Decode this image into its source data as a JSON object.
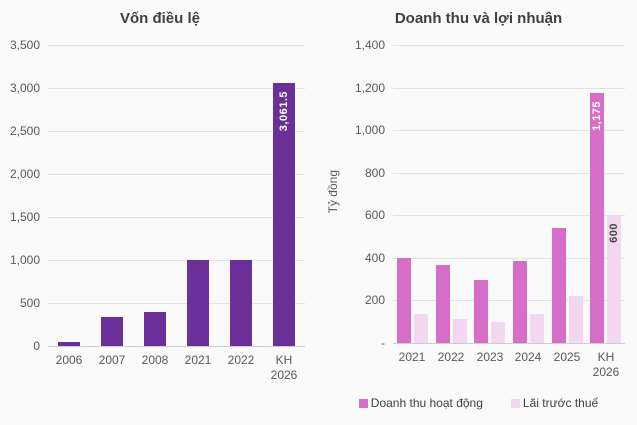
{
  "page": {
    "background": "#FAFAFA"
  },
  "chart_data": [
    {
      "type": "bar",
      "title": "Vốn điều lệ",
      "categories": [
        "2006",
        "2007",
        "2008",
        "2021",
        "2022",
        "KH\n2026"
      ],
      "series": [
        {
          "name": "Vốn điều lệ",
          "color": "#6B2F9A",
          "values": [
            50,
            335,
            395,
            995,
            1000,
            3061.5
          ]
        }
      ],
      "ylim": [
        0,
        3500
      ],
      "yticks": [
        "0",
        "500",
        "1,000",
        "1,500",
        "2,000",
        "2,500",
        "3,000",
        "3,500"
      ],
      "grid": true,
      "legend_position": "none",
      "value_labels": [
        {
          "series": 0,
          "index": 5,
          "text": "3,061.5",
          "color": "#FFFFFF"
        }
      ]
    },
    {
      "type": "bar",
      "title": "Doanh thu và lợi nhuận",
      "ylabel": "Tỷ đồng",
      "categories": [
        "2021",
        "2022",
        "2023",
        "2024",
        "2025",
        "KH\n2026"
      ],
      "series": [
        {
          "name": "Doanh thu hoạt động",
          "color": "#D66EC8",
          "values": [
            400,
            365,
            295,
            385,
            540,
            1175
          ]
        },
        {
          "name": "Lãi trước thuế",
          "color": "#F3D6F0",
          "values": [
            135,
            115,
            100,
            135,
            220,
            600
          ]
        }
      ],
      "ylim": [
        0,
        1400
      ],
      "yticks": [
        "-",
        "200",
        "400",
        "600",
        "800",
        "1,000",
        "1,200",
        "1,400"
      ],
      "grid": true,
      "legend_position": "bottom",
      "value_labels": [
        {
          "series": 0,
          "index": 5,
          "text": "1,175",
          "color": "#FFFFFF"
        },
        {
          "series": 1,
          "index": 5,
          "text": "600",
          "color": "#474747"
        }
      ]
    }
  ]
}
